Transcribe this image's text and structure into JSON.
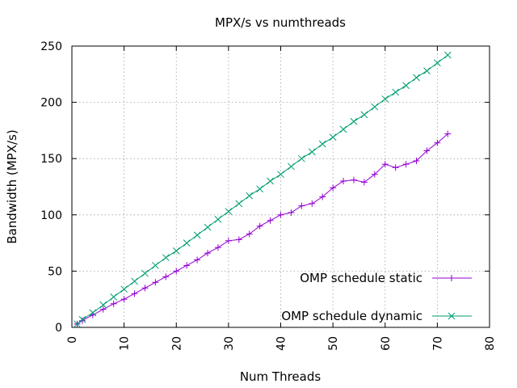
{
  "chart_data": {
    "type": "line",
    "title": "MPX/s vs numthreads",
    "xlabel": "Num Threads",
    "ylabel": "Bandwidth (MPX/s)",
    "xlim": [
      0,
      80
    ],
    "ylim": [
      0,
      250
    ],
    "xticks": [
      0,
      10,
      20,
      30,
      40,
      50,
      60,
      70,
      80
    ],
    "yticks": [
      0,
      50,
      100,
      150,
      200,
      250
    ],
    "grid": true,
    "legend_position": "bottom-right",
    "series": [
      {
        "name": "OMP schedule static",
        "color": "#9400d3",
        "marker": "plus",
        "x": [
          1,
          2,
          4,
          6,
          8,
          10,
          12,
          14,
          16,
          18,
          20,
          22,
          24,
          26,
          28,
          30,
          32,
          34,
          36,
          38,
          40,
          42,
          44,
          46,
          48,
          50,
          52,
          54,
          56,
          58,
          60,
          62,
          64,
          66,
          68,
          70,
          72
        ],
        "y": [
          3,
          6,
          11,
          16,
          21,
          25,
          30,
          35,
          40,
          45,
          50,
          55,
          60,
          66,
          71,
          77,
          78,
          83,
          90,
          95,
          100,
          102,
          108,
          110,
          116,
          124,
          130,
          131,
          129,
          136,
          145,
          142,
          145,
          148,
          157,
          164,
          172
        ]
      },
      {
        "name": "OMP schedule dynamic",
        "color": "#009e73",
        "marker": "cross",
        "x": [
          1,
          2,
          4,
          6,
          8,
          10,
          12,
          14,
          16,
          18,
          20,
          22,
          24,
          26,
          28,
          30,
          32,
          34,
          36,
          38,
          40,
          42,
          44,
          46,
          48,
          50,
          52,
          54,
          56,
          58,
          60,
          62,
          64,
          66,
          68,
          70,
          72
        ],
        "y": [
          3,
          7,
          13,
          20,
          27,
          34,
          41,
          48,
          55,
          62,
          68,
          75,
          82,
          89,
          96,
          103,
          110,
          117,
          123,
          130,
          136,
          143,
          150,
          156,
          163,
          169,
          176,
          183,
          189,
          196,
          203,
          209,
          215,
          222,
          228,
          235,
          242
        ]
      }
    ]
  }
}
